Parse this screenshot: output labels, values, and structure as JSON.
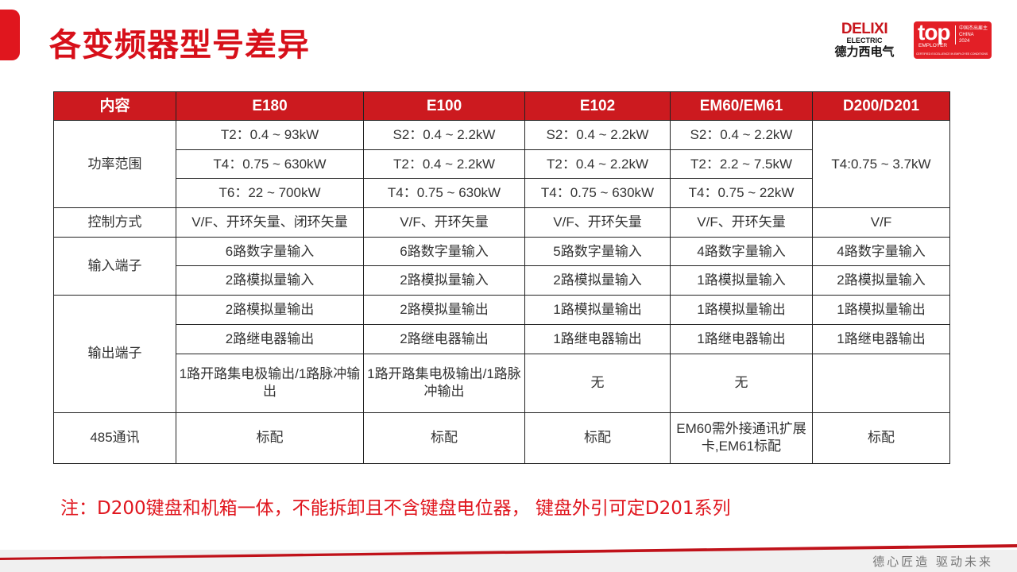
{
  "title": "各变频器型号差异",
  "logos": {
    "delixi_en": "DELIXI",
    "delixi_sub": "ELECTRIC",
    "delixi_cn": "德力西电气",
    "top": "top",
    "employer": "EMPLOYER",
    "cn_text": "中国杰出雇主",
    "china": "CHINA",
    "year": "2024",
    "cert": "CERTIFIED EXCELLENCE IN EMPLOYEE CONDITIONS"
  },
  "table": {
    "headers": [
      "内容",
      "E180",
      "E100",
      "E102",
      "EM60/EM61",
      "D200/D201"
    ],
    "power_label": "功率范围",
    "power": [
      [
        "T2：0.4 ~ 93kW",
        "S2：0.4 ~ 2.2kW",
        "S2：0.4 ~ 2.2kW",
        "S2：0.4 ~ 2.2kW"
      ],
      [
        "T4：0.75 ~ 630kW",
        "T2：0.4 ~ 2.2kW",
        "T2：0.4 ~ 2.2kW",
        "T2：2.2 ~ 7.5kW"
      ],
      [
        "T6：22 ~ 700kW",
        "T4：0.75 ~ 630kW",
        "T4：0.75 ~ 630kW",
        "T4：0.75 ~ 22kW"
      ]
    ],
    "power_d200": "T4:0.75 ~ 3.7kW",
    "control_label": "控制方式",
    "control": [
      "V/F、开环矢量、闭环矢量",
      "V/F、开环矢量",
      "V/F、开环矢量",
      "V/F、开环矢量",
      "V/F"
    ],
    "input_label": "输入端子",
    "input": [
      [
        "6路数字量输入",
        "6路数字量输入",
        "5路数字量输入",
        "4路数字量输入",
        "4路数字量输入"
      ],
      [
        "2路模拟量输入",
        "2路模拟量输入",
        "2路模拟量输入",
        "1路模拟量输入",
        "2路模拟量输入"
      ]
    ],
    "output_label": "输出端子",
    "output": [
      [
        "2路模拟量输出",
        "2路模拟量输出",
        "1路模拟量输出",
        "1路模拟量输出",
        "1路模拟量输出"
      ],
      [
        "2路继电器输出",
        "2路继电器输出",
        "1路继电器输出",
        "1路继电器输出",
        "1路继电器输出"
      ],
      [
        "1路开路集电极输出/1路脉冲输出",
        "1路开路集电极输出/1路脉冲输出",
        "无",
        "无",
        ""
      ]
    ],
    "comm_label": "485通讯",
    "comm": [
      "标配",
      "标配",
      "标配",
      "EM60需外接通讯扩展卡,EM61标配",
      "标配"
    ]
  },
  "note": "注：D200键盘和机箱一体，不能拆卸且不含键盘电位器， 键盘外引可定D201系列",
  "slogan": "德心匠造   驱动未来",
  "colors": {
    "accent": "#d7101a",
    "header_bg": "#cc1a1f"
  }
}
